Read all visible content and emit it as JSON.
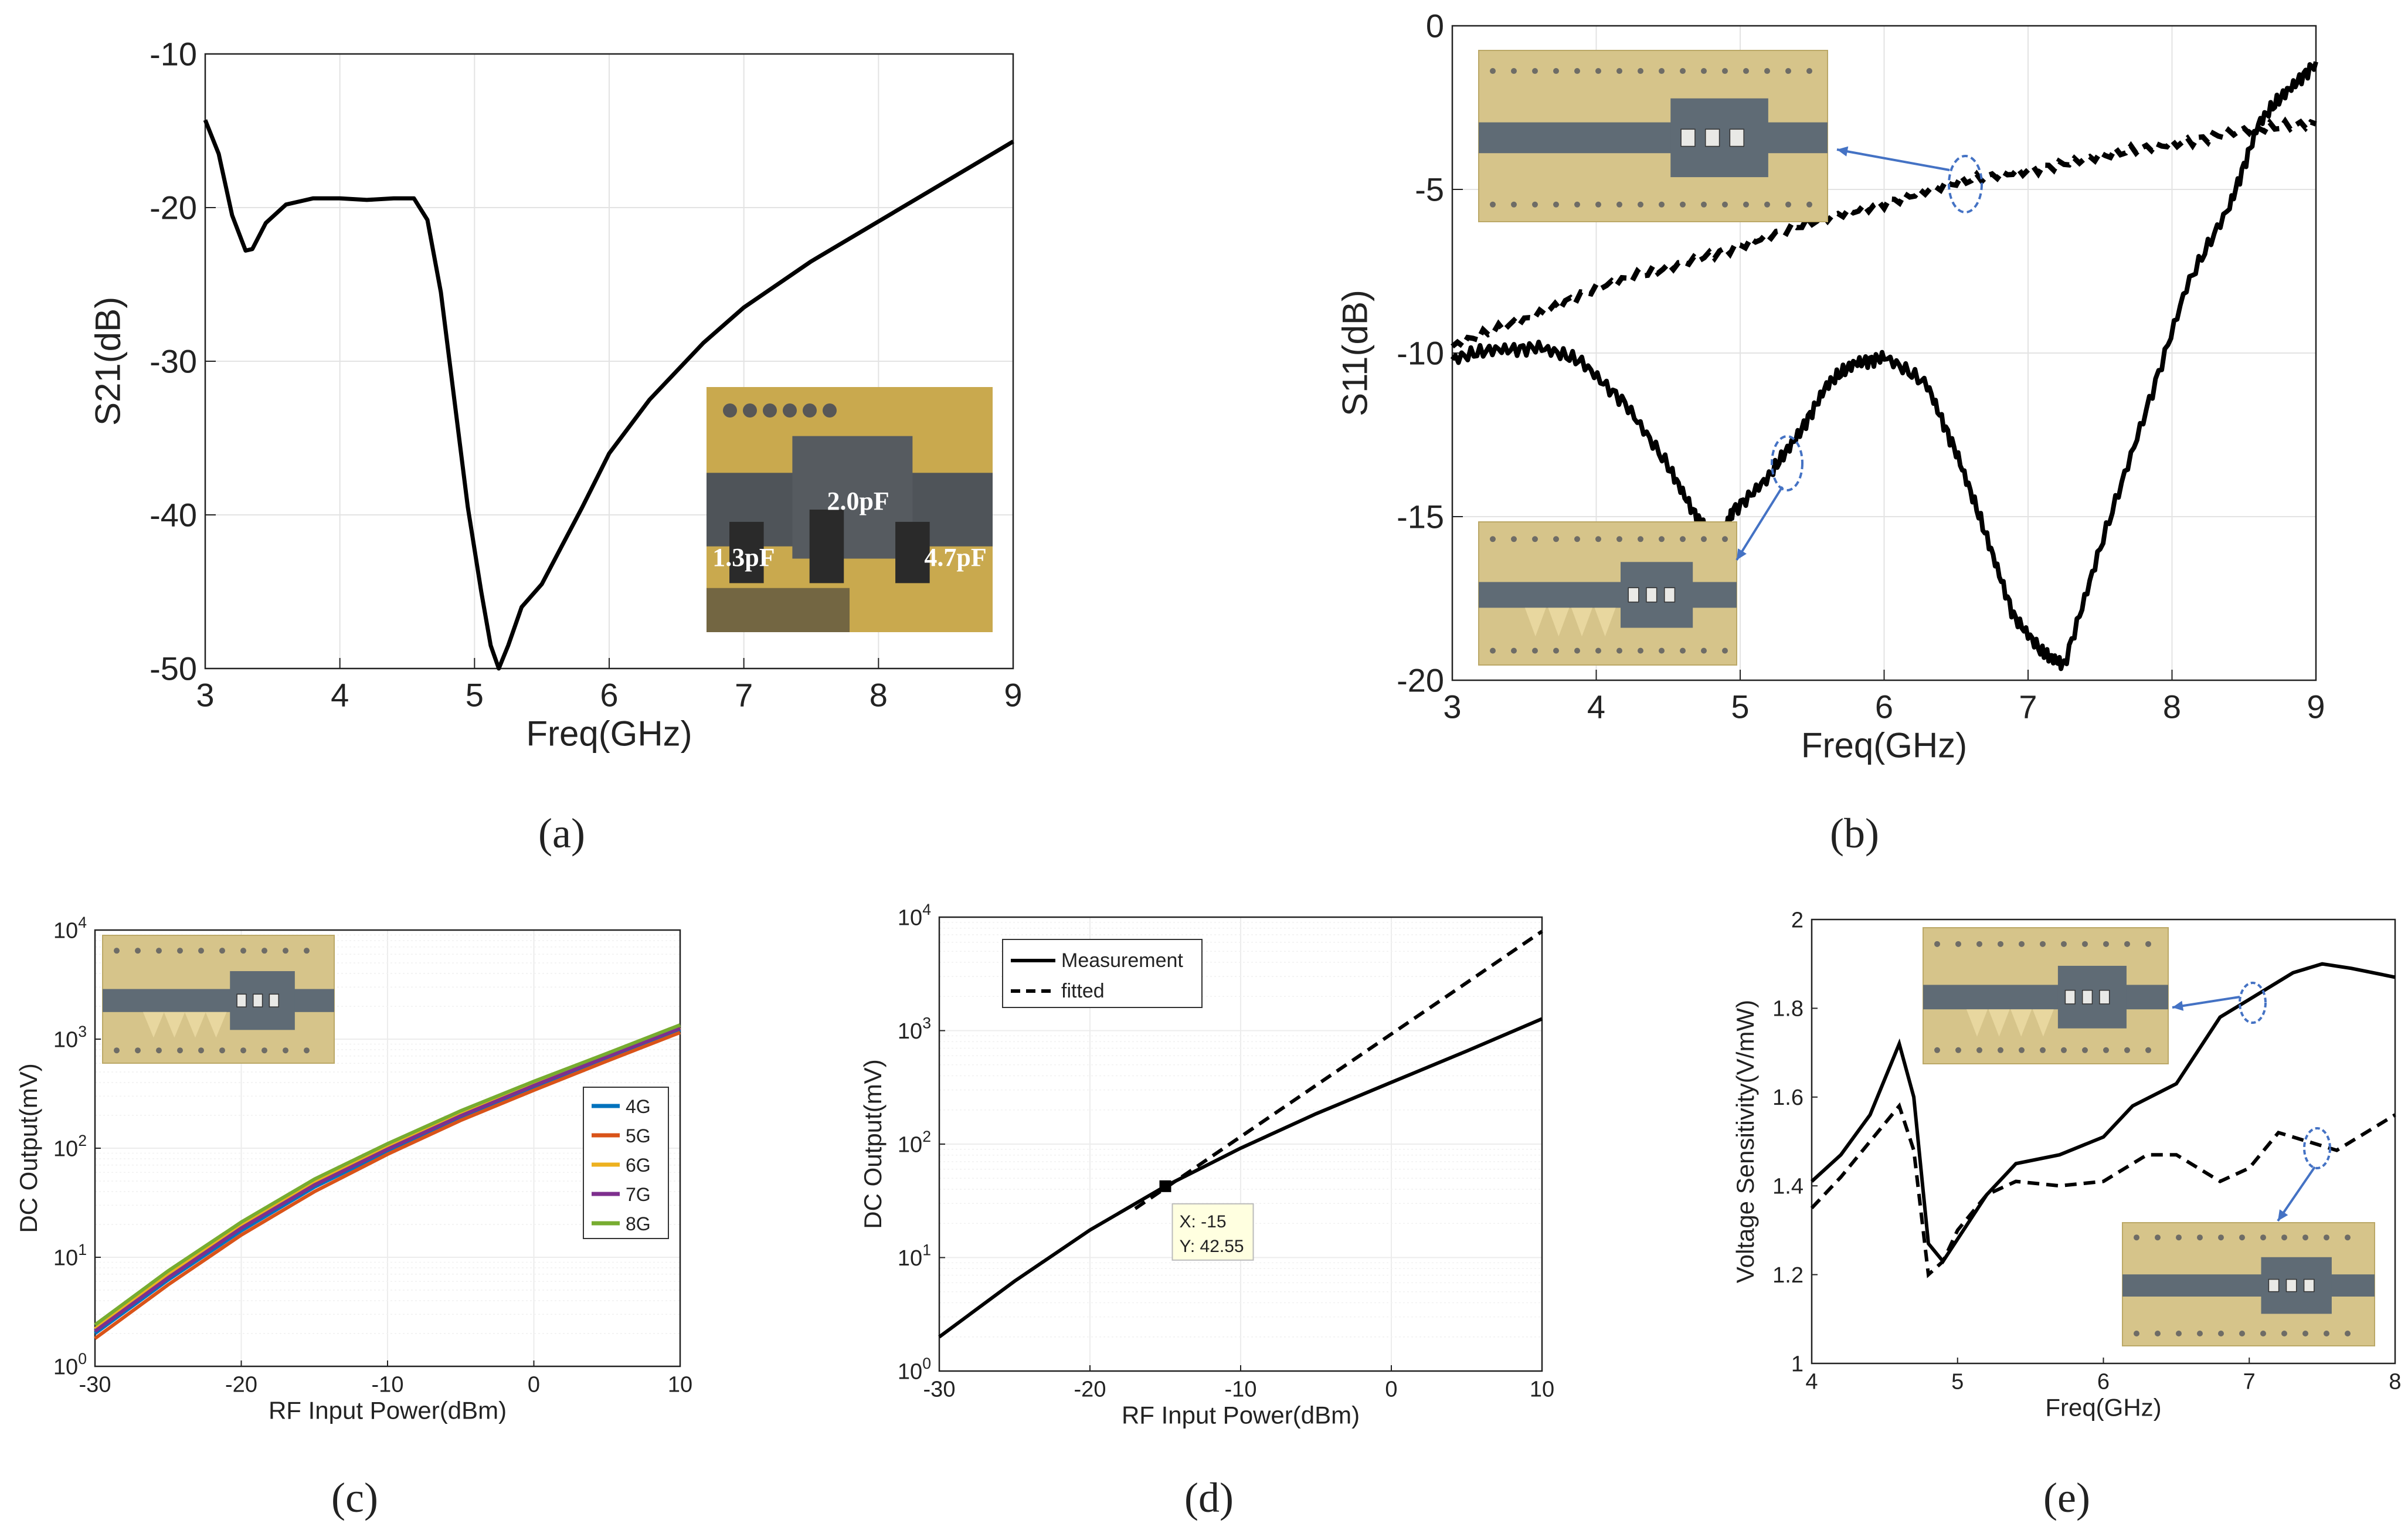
{
  "figure": {
    "panel_labels": [
      "(a)",
      "(b)",
      "(c)",
      "(d)",
      "(e)"
    ]
  },
  "chart_data": [
    {
      "panel": "(a)",
      "type": "line",
      "title": "",
      "xlabel": "Freq(GHz)",
      "ylabel": "S21(dB)",
      "xlim": [
        3,
        9
      ],
      "ylim": [
        -50,
        -10
      ],
      "xticks": [
        3,
        4,
        5,
        6,
        7,
        8,
        9
      ],
      "yticks": [
        -50,
        -40,
        -30,
        -20,
        -10
      ],
      "grid": true,
      "series": [
        {
          "name": "S21",
          "style": "solid",
          "x": [
            3.0,
            3.1,
            3.2,
            3.3,
            3.35,
            3.45,
            3.6,
            3.8,
            4.0,
            4.2,
            4.4,
            4.55,
            4.65,
            4.75,
            4.85,
            4.95,
            5.05,
            5.12,
            5.18,
            5.25,
            5.35,
            5.5,
            5.65,
            5.8,
            6.0,
            6.3,
            6.7,
            7.0,
            7.5,
            8.0,
            8.5,
            9.0
          ],
          "y": [
            -14.3,
            -16.5,
            -20.5,
            -22.8,
            -22.7,
            -21.0,
            -19.8,
            -19.4,
            -19.4,
            -19.5,
            -19.4,
            -19.4,
            -20.8,
            -25.5,
            -32.5,
            -39.5,
            -45.0,
            -48.5,
            -50.0,
            -48.5,
            -46.0,
            -44.5,
            -42.0,
            -39.5,
            -36.0,
            -32.5,
            -28.8,
            -26.5,
            -23.5,
            -20.9,
            -18.3,
            -15.7
          ]
        }
      ],
      "inset": {
        "description": "PCB photo",
        "labels": [
          "2.0pF",
          "1.3pF",
          "4.7pF"
        ]
      }
    },
    {
      "panel": "(b)",
      "type": "line",
      "title": "",
      "xlabel": "Freq(GHz)",
      "ylabel": "S11(dB)",
      "xlim": [
        3,
        9
      ],
      "ylim": [
        -20,
        0
      ],
      "xticks": [
        3,
        4,
        5,
        6,
        7,
        8,
        9
      ],
      "yticks": [
        -20,
        -15,
        -10,
        -5,
        0
      ],
      "grid": true,
      "series": [
        {
          "name": "solid",
          "style": "solid",
          "x": [
            3.0,
            3.3,
            3.6,
            3.9,
            4.2,
            4.5,
            4.7,
            4.85,
            4.95,
            5.2,
            5.4,
            5.6,
            5.8,
            6.0,
            6.3,
            6.5,
            6.7,
            6.9,
            7.1,
            7.25,
            7.5,
            7.8,
            8.1,
            8.4,
            8.6,
            8.8,
            9.0
          ],
          "y": [
            -10.2,
            -9.9,
            -9.8,
            -10.3,
            -11.5,
            -13.5,
            -15.0,
            -15.8,
            -14.8,
            -13.8,
            -12.5,
            -11.0,
            -10.3,
            -10.1,
            -11.0,
            -13.0,
            -15.5,
            -18.0,
            -19.2,
            -19.5,
            -16.0,
            -12.0,
            -8.0,
            -5.5,
            -3.0,
            -2.0,
            -1.1
          ]
        },
        {
          "name": "dashed",
          "style": "dashed",
          "x": [
            3.0,
            3.5,
            4.0,
            4.5,
            5.0,
            5.5,
            6.0,
            6.5,
            7.0,
            7.5,
            8.0,
            8.5,
            9.0
          ],
          "y": [
            -9.8,
            -9.0,
            -8.0,
            -7.4,
            -6.7,
            -6.0,
            -5.4,
            -4.8,
            -4.4,
            -4.0,
            -3.6,
            -3.2,
            -3.0
          ]
        }
      ],
      "insets": [
        {
          "description": "PCB photo (top), arrow to dashed curve"
        },
        {
          "description": "PCB photo (bottom), arrow to solid curve"
        }
      ]
    },
    {
      "panel": "(c)",
      "type": "line",
      "title": "",
      "xlabel": "RF Input Power(dBm)",
      "ylabel": "DC Output(mV)",
      "yscale": "log",
      "xlim": [
        -30,
        10
      ],
      "ylim": [
        1,
        10000
      ],
      "xticks": [
        -30,
        -20,
        -10,
        0,
        10
      ],
      "yticks": [
        1,
        10,
        100,
        1000,
        10000
      ],
      "ytick_base": "10",
      "ytick_exponents": [
        "0",
        "1",
        "2",
        "3",
        "4"
      ],
      "grid": true,
      "legend_position": "right",
      "x": [
        -30,
        -25,
        -20,
        -15,
        -10,
        -5,
        0,
        5,
        10
      ],
      "series": [
        {
          "name": "4G",
          "color": "#0072BD",
          "values": [
            2.0,
            6.2,
            17.5,
            44,
            94,
            190,
            360,
            660,
            1220
          ]
        },
        {
          "name": "5G",
          "color": "#D95319",
          "values": [
            1.8,
            5.6,
            16.0,
            40,
            88,
            180,
            340,
            630,
            1150
          ]
        },
        {
          "name": "6G",
          "color": "#EDB120",
          "values": [
            2.2,
            6.9,
            19.5,
            48,
            102,
            205,
            385,
            700,
            1280
          ]
        },
        {
          "name": "7G",
          "color": "#7E2F8E",
          "values": [
            2.1,
            6.5,
            18.5,
            46,
            98,
            198,
            375,
            690,
            1260
          ]
        },
        {
          "name": "8G",
          "color": "#77AC30",
          "values": [
            2.4,
            7.5,
            21.0,
            52,
            110,
            220,
            410,
            740,
            1350
          ]
        }
      ]
    },
    {
      "panel": "(d)",
      "type": "line",
      "title": "",
      "xlabel": "RF Input Power(dBm)",
      "ylabel": "DC Output(mV)",
      "yscale": "log",
      "xlim": [
        -30,
        10
      ],
      "ylim": [
        1,
        10000
      ],
      "xticks": [
        -30,
        -20,
        -10,
        0,
        10
      ],
      "yticks": [
        1,
        10,
        100,
        1000,
        10000
      ],
      "ytick_base": "10",
      "ytick_exponents": [
        "0",
        "1",
        "2",
        "3",
        "4"
      ],
      "grid": true,
      "legend_position": "top-left",
      "series": [
        {
          "name": "Measurement",
          "style": "solid",
          "x": [
            -30,
            -25,
            -20,
            -15,
            -10,
            -5,
            0,
            5,
            10
          ],
          "y": [
            2.0,
            6.2,
            17.5,
            42.55,
            92,
            185,
            350,
            660,
            1270
          ]
        },
        {
          "name": "fitted",
          "style": "dashed",
          "x": [
            -17,
            10
          ],
          "y": [
            27,
            7500
          ]
        }
      ],
      "datatip": {
        "x": -15,
        "y": 42.55,
        "label_x": "X: -15",
        "label_y": "Y: 42.55"
      }
    },
    {
      "panel": "(e)",
      "type": "line",
      "title": "",
      "xlabel": "Freq(GHz)",
      "ylabel": "Voltage Sensitivity(V/mW)",
      "xlim": [
        4,
        8
      ],
      "ylim": [
        1,
        2
      ],
      "xticks": [
        4,
        5,
        6,
        7,
        8
      ],
      "yticks": [
        1,
        1.2,
        1.4,
        1.6,
        1.8,
        2
      ],
      "grid": false,
      "series": [
        {
          "name": "solid",
          "style": "solid",
          "x": [
            4.0,
            4.2,
            4.4,
            4.6,
            4.7,
            4.8,
            4.9,
            5.0,
            5.2,
            5.4,
            5.7,
            6.0,
            6.2,
            6.5,
            6.8,
            7.0,
            7.3,
            7.5,
            7.7,
            8.0
          ],
          "y": [
            1.41,
            1.47,
            1.56,
            1.72,
            1.6,
            1.27,
            1.23,
            1.28,
            1.38,
            1.45,
            1.47,
            1.51,
            1.58,
            1.63,
            1.78,
            1.82,
            1.88,
            1.9,
            1.89,
            1.87
          ]
        },
        {
          "name": "dashed",
          "style": "dashed",
          "x": [
            4.0,
            4.2,
            4.4,
            4.6,
            4.7,
            4.8,
            4.9,
            5.0,
            5.2,
            5.4,
            5.7,
            6.0,
            6.3,
            6.5,
            6.8,
            7.0,
            7.2,
            7.4,
            7.6,
            8.0
          ],
          "y": [
            1.35,
            1.42,
            1.5,
            1.58,
            1.48,
            1.2,
            1.23,
            1.3,
            1.38,
            1.41,
            1.4,
            1.41,
            1.47,
            1.47,
            1.41,
            1.44,
            1.52,
            1.5,
            1.48,
            1.56
          ]
        }
      ],
      "insets": [
        {
          "description": "PCB photo (top), arrow to solid curve"
        },
        {
          "description": "PCB photo (bottom), arrow to dashed curve"
        }
      ]
    }
  ]
}
